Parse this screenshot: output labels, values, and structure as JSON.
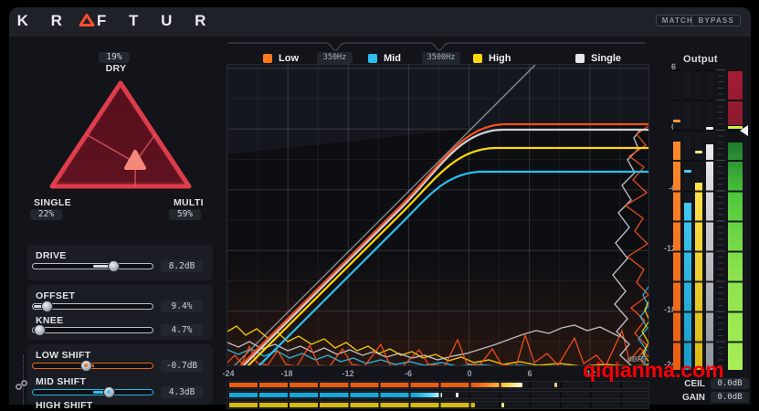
{
  "titlebar": {
    "logo_prefix": "K R",
    "logo_suffix": "F T U R",
    "match_label": "MATCH",
    "bypass_label": "BYPASS"
  },
  "triangle_pad": {
    "dry_label": "DRY",
    "dry_value": "19%",
    "single_label": "SINGLE",
    "single_value": "22%",
    "multi_label": "MULTI",
    "multi_value": "59%"
  },
  "sliders": [
    {
      "label": "DRIVE",
      "value": "8.2dB"
    },
    {
      "label": "OFFSET",
      "value": "9.4%"
    },
    {
      "label": "KNEE",
      "value": "4.7%"
    },
    {
      "label": "LOW SHIFT",
      "value": "-0.7dB"
    },
    {
      "label": "MID SHIFT",
      "value": "4.3dB"
    },
    {
      "label": "HIGH SHIFT"
    }
  ],
  "bands": {
    "low": {
      "label": "Low",
      "freq": "350Hz"
    },
    "mid": {
      "label": "Mid",
      "freq": "3500Hz"
    },
    "high": {
      "label": "High"
    },
    "single": {
      "label": "Single"
    }
  },
  "graph": {
    "x_ticks": [
      "-24",
      "-18",
      "-12",
      "-6",
      "0",
      "6",
      "12"
    ],
    "x_unit": "dBFS",
    "y_ticks": [
      "6",
      "0",
      "-6",
      "-12",
      "-18",
      "-24"
    ]
  },
  "output": {
    "label": "Output",
    "ceil_label": "CEIL",
    "ceil_value": "0.0dB",
    "gain_label": "GAIN",
    "gain_value": "0.0dB"
  },
  "watermark": "qiqianma.com",
  "colors": {
    "low_band": "#ff7a1a",
    "mid_band": "#2bc1ef",
    "high_band": "#ffd60a",
    "single_band": "#e8e8ee",
    "accent_red": "#e8404f",
    "meter_green": "#8ae24e",
    "meter_red": "#9b1d32",
    "watermark_red": "#f80006"
  }
}
